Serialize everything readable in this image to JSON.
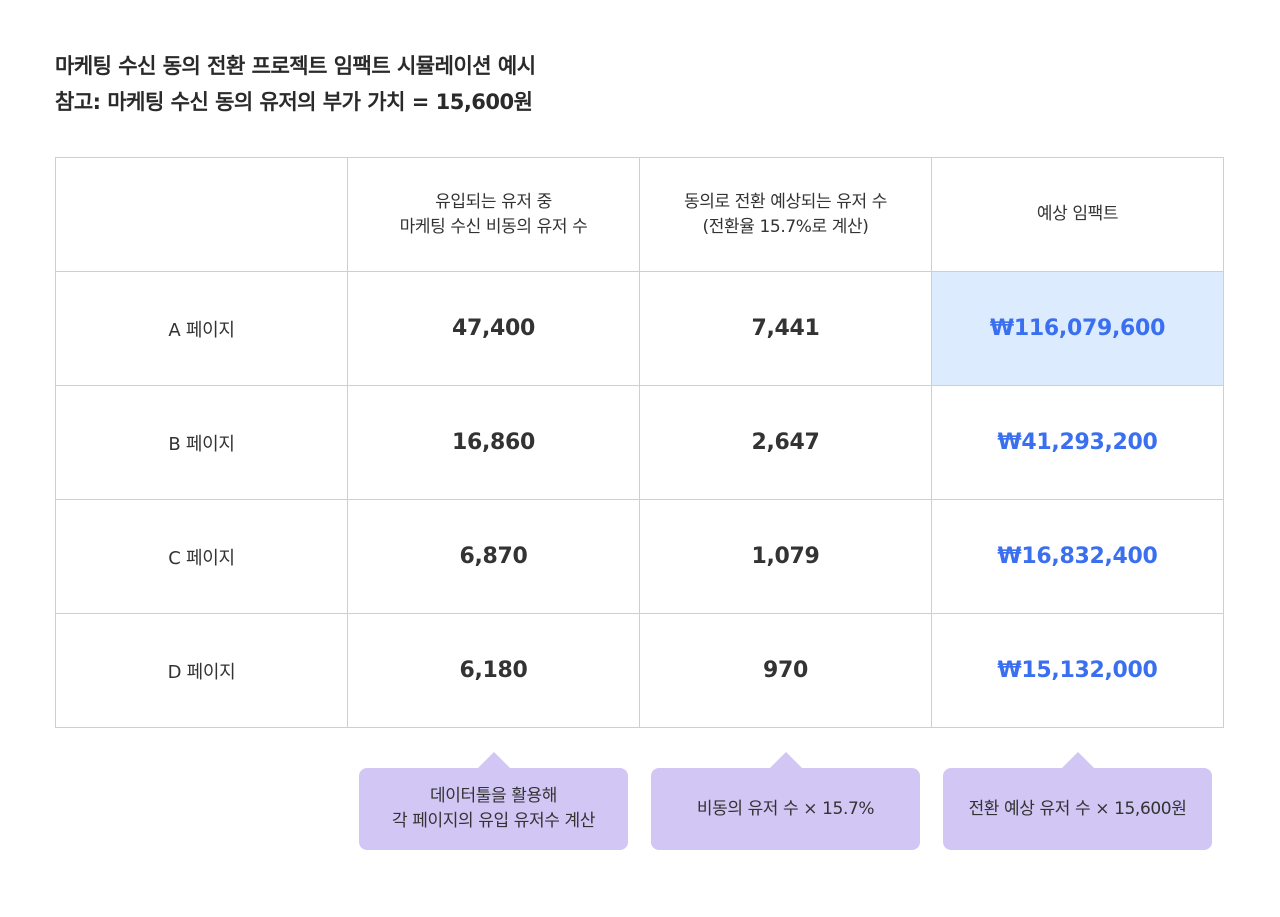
{
  "heading": {
    "line1": "마케팅 수신 동의 전환 프로젝트 임팩트 시뮬레이션 예시",
    "line2": "참고: 마케팅 수신 동의 유저의 부가 가치 = 15,600원"
  },
  "table": {
    "headers": [
      {
        "line1": "",
        "line2": ""
      },
      {
        "line1": "유입되는 유저 중",
        "line2": "마케팅 수신 비동의 유저 수"
      },
      {
        "line1": "동의로 전환 예상되는 유저 수",
        "line2": "(전환율 15.7%로 계산)"
      },
      {
        "line1": "예상 임팩트",
        "line2": ""
      }
    ],
    "rows": [
      {
        "label": "A 페이지",
        "users": "47,400",
        "converted": "7,441",
        "impact": "₩116,079,600"
      },
      {
        "label": "B 페이지",
        "users": "16,860",
        "converted": "2,647",
        "impact": "₩41,293,200"
      },
      {
        "label": "C 페이지",
        "users": "6,870",
        "converted": "1,079",
        "impact": "₩16,832,400"
      },
      {
        "label": "D 페이지",
        "users": "6,180",
        "converted": "970",
        "impact": "₩15,132,000"
      }
    ]
  },
  "callouts": [
    {
      "line1": "데이터툴을 활용해",
      "line2": "각 페이지의 유입 유저수 계산"
    },
    {
      "line1": "비동의 유저 수 × 15.7%",
      "line2": ""
    },
    {
      "line1": "전환 예상 유저 수 × 15,600원",
      "line2": ""
    }
  ],
  "colors": {
    "impact_text": "#3a6ff0",
    "highlight_cell": "#dcebfd",
    "callout_bg": "#d2c6f4",
    "grid_border": "#cfcfcf"
  }
}
